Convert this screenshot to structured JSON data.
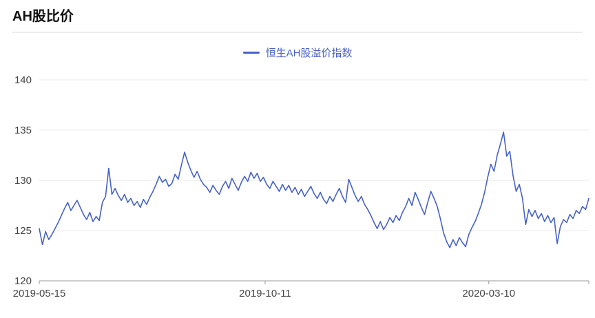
{
  "chart_data": {
    "type": "line",
    "title": "AH股比价",
    "legend_position": "top-center",
    "grid": true,
    "colors": {
      "grid": "#e8e8e8",
      "axis": "#999999",
      "tick_label": "#444444",
      "title": "#111111"
    },
    "x_axis": {
      "ticks": [
        {
          "label": "2019-05-15",
          "position": 0.0
        },
        {
          "label": "2019-10-11",
          "position": 0.411
        },
        {
          "label": "2020-03-10",
          "position": 0.818
        }
      ]
    },
    "y_axis": {
      "range": [
        120,
        140
      ],
      "ticks": [
        120,
        125,
        130,
        135,
        140
      ]
    },
    "series": [
      {
        "name": "恒生AH股溢价指数",
        "color": "#4662c6",
        "values": [
          125.2,
          123.6,
          124.9,
          124.1,
          124.6,
          125.2,
          125.8,
          126.5,
          127.2,
          127.8,
          127.0,
          127.5,
          128.0,
          127.3,
          126.6,
          126.1,
          126.8,
          125.9,
          126.4,
          126.0,
          127.8,
          128.4,
          131.2,
          128.6,
          129.2,
          128.5,
          128.0,
          128.6,
          127.8,
          128.2,
          127.5,
          127.9,
          127.3,
          128.1,
          127.6,
          128.3,
          128.9,
          129.6,
          130.4,
          129.8,
          130.1,
          129.4,
          129.7,
          130.6,
          130.1,
          131.5,
          132.8,
          131.8,
          131.0,
          130.3,
          130.9,
          130.1,
          129.6,
          129.3,
          128.8,
          129.5,
          129.0,
          128.6,
          129.4,
          129.9,
          129.2,
          130.2,
          129.6,
          129.0,
          129.8,
          130.4,
          129.9,
          130.8,
          130.2,
          130.7,
          129.9,
          130.3,
          129.6,
          129.2,
          129.9,
          129.4,
          128.9,
          129.6,
          129.0,
          129.5,
          128.8,
          129.3,
          128.6,
          129.1,
          128.4,
          128.9,
          129.4,
          128.7,
          128.2,
          128.8,
          128.1,
          127.7,
          128.4,
          127.9,
          128.6,
          129.2,
          128.4,
          127.8,
          130.1,
          129.3,
          128.5,
          127.9,
          128.4,
          127.6,
          127.1,
          126.5,
          125.8,
          125.2,
          125.9,
          125.1,
          125.6,
          126.3,
          125.8,
          126.5,
          126.0,
          126.8,
          127.4,
          128.2,
          127.5,
          128.8,
          128.1,
          127.3,
          126.6,
          127.8,
          128.9,
          128.2,
          127.4,
          126.2,
          124.8,
          123.9,
          123.3,
          124.1,
          123.5,
          124.3,
          123.8,
          123.4,
          124.6,
          125.3,
          125.9,
          126.7,
          127.6,
          128.8,
          130.3,
          131.6,
          130.9,
          132.5,
          133.6,
          134.8,
          132.4,
          132.9,
          130.5,
          128.9,
          129.6,
          128.2,
          125.6,
          127.1,
          126.4,
          127.0,
          126.2,
          126.7,
          125.9,
          126.5,
          125.8,
          126.3,
          123.7,
          125.4,
          126.1,
          125.8,
          126.6,
          126.2,
          127.0,
          126.7,
          127.4,
          127.1,
          128.2
        ]
      }
    ]
  }
}
